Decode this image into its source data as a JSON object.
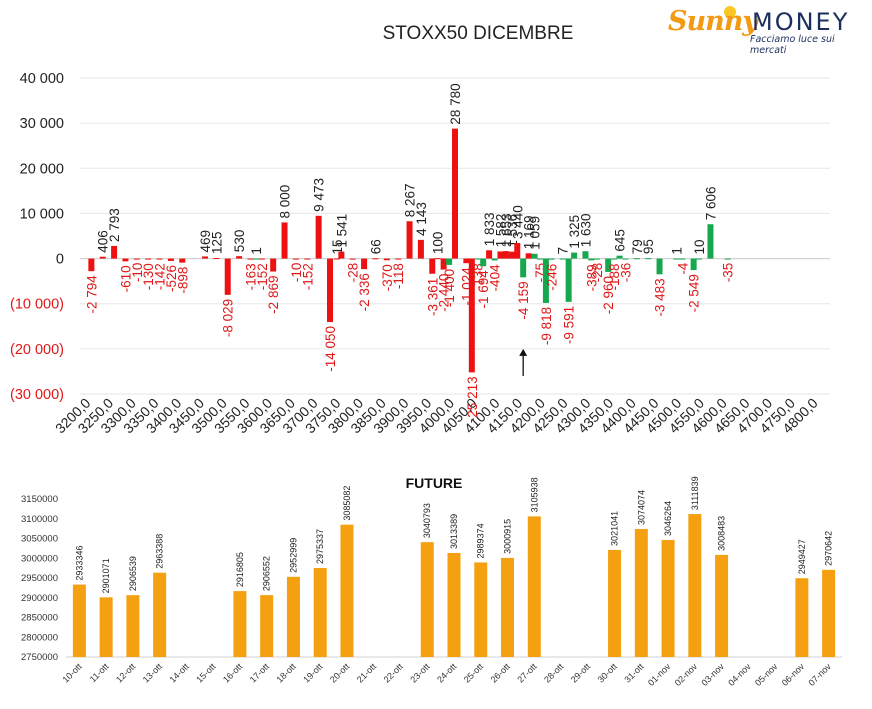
{
  "logo": {
    "brand_first": "Sunny",
    "brand_second": "MONEY",
    "tagline": "Facciamo luce sui mercati",
    "colors": {
      "sunny": "#f29a12",
      "money": "#1b2f5e"
    }
  },
  "chart_data": [
    {
      "type": "bar",
      "title": "STOXX50 DICEMBRE",
      "xlabel": "",
      "ylabel": "",
      "ylim": [
        -30000,
        40000
      ],
      "y_ticks": [
        "40 000",
        "30 000",
        "20 000",
        "10 000",
        "0",
        "(10 000)",
        "(20 000)",
        "(30 000)"
      ],
      "y_tick_values": [
        40000,
        30000,
        20000,
        10000,
        0,
        -10000,
        -20000,
        -30000
      ],
      "grid": true,
      "colors": {
        "put": "#ee1111",
        "call": "#15a84e",
        "negative_text": "#e01818",
        "axis_text": "#222222"
      },
      "categories": [
        "3200,0",
        "3250,0",
        "3300,0",
        "3350,0",
        "3400,0",
        "3450,0",
        "3500,0",
        "3550,0",
        "3600,0",
        "3650,0",
        "3700,0",
        "3750,0",
        "3800,0",
        "3850,0",
        "3900,0",
        "3950,0",
        "4000,0",
        "4050,0",
        "4100,0",
        "4150,0",
        "4200,0",
        "4250,0",
        "4300,0",
        "4350,0",
        "4400,0",
        "4450,0",
        "4500,0",
        "4550,0",
        "4600,0",
        "4650,0",
        "4700,0",
        "4750,0",
        "4800,0"
      ],
      "category_values": [
        3200,
        3250,
        3300,
        3350,
        3400,
        3450,
        3500,
        3550,
        3600,
        3650,
        3700,
        3750,
        3800,
        3850,
        3900,
        3950,
        4000,
        4050,
        4100,
        4150,
        4200,
        4250,
        4300,
        4350,
        4400,
        4450,
        4500,
        4550,
        4600,
        4650,
        4700,
        4750,
        4800
      ],
      "series": [
        {
          "color": "red",
          "points": [
            {
              "x": 3200,
              "y": -2794,
              "label": "-2 794"
            },
            {
              "x": 3225,
              "y": 406,
              "label": "406"
            },
            {
              "x": 3250,
              "y": 2793,
              "label": "2 793"
            },
            {
              "x": 3275,
              "y": -610,
              "label": "-610"
            },
            {
              "x": 3300,
              "y": -10,
              "label": "-10"
            },
            {
              "x": 3325,
              "y": -130,
              "label": "-130"
            },
            {
              "x": 3350,
              "y": -142,
              "label": "-142"
            },
            {
              "x": 3375,
              "y": -526,
              "label": "-526"
            },
            {
              "x": 3400,
              "y": -898,
              "label": "-898"
            },
            {
              "x": 3450,
              "y": 469,
              "label": "469"
            },
            {
              "x": 3475,
              "y": 125,
              "label": "125"
            },
            {
              "x": 3500,
              "y": -8029,
              "label": "-8 029"
            },
            {
              "x": 3525,
              "y": 530,
              "label": "530"
            },
            {
              "x": 3550,
              "y": -163,
              "label": "-163"
            },
            {
              "x": 3575,
              "y": -152,
              "label": "-152"
            },
            {
              "x": 3600,
              "y": -2869,
              "label": "-2 869"
            },
            {
              "x": 3625,
              "y": 8000,
              "label": "8 000"
            },
            {
              "x": 3650,
              "y": -10,
              "label": "-10"
            },
            {
              "x": 3675,
              "y": -152,
              "label": "-152"
            },
            {
              "x": 3700,
              "y": 9473,
              "label": "9 473"
            },
            {
              "x": 3725,
              "y": -14050,
              "label": "-14 050"
            },
            {
              "x": 3740,
              "y": 15,
              "label": "15"
            },
            {
              "x": 3750,
              "y": 1541,
              "label": "1 541"
            },
            {
              "x": 3775,
              "y": -28,
              "label": "-28"
            },
            {
              "x": 3800,
              "y": -2336,
              "label": "-2 336"
            },
            {
              "x": 3825,
              "y": 66,
              "label": "66"
            },
            {
              "x": 3850,
              "y": -370,
              "label": "-370"
            },
            {
              "x": 3875,
              "y": -118,
              "label": "-118"
            },
            {
              "x": 3900,
              "y": 8267,
              "label": "8 267"
            },
            {
              "x": 3925,
              "y": 4143,
              "label": "4 143"
            },
            {
              "x": 3950,
              "y": -3361,
              "label": "-3 361"
            },
            {
              "x": 3962,
              "y": 100,
              "label": "100"
            },
            {
              "x": 3975,
              "y": -2440,
              "label": "-2 440"
            },
            {
              "x": 4000,
              "y": 28780,
              "label": "28 780"
            },
            {
              "x": 4025,
              "y": -1024,
              "label": "-1 024"
            },
            {
              "x": 4037,
              "y": -25213,
              "label": "-25 213"
            },
            {
              "x": 4075,
              "y": 1833,
              "label": "1 833"
            },
            {
              "x": 4100,
              "y": 1582,
              "label": "1 582"
            },
            {
              "x": 4112,
              "y": 1653,
              "label": "1 653"
            },
            {
              "x": 4125,
              "y": 1536,
              "label": "1 536"
            },
            {
              "x": 4137,
              "y": 3440,
              "label": "3 440"
            },
            {
              "x": 4162,
              "y": 1169,
              "label": "1 169"
            }
          ]
        },
        {
          "color": "green",
          "points": [
            {
              "x": 3562,
              "y": 1,
              "label": "1"
            },
            {
              "x": 3987,
              "y": -1400,
              "label": "-1 400"
            },
            {
              "x": 4050,
              "y": -138,
              "label": "-138"
            },
            {
              "x": 4062,
              "y": -1694,
              "label": "-1 694"
            },
            {
              "x": 4087,
              "y": -404,
              "label": "-404"
            },
            {
              "x": 4150,
              "y": -4159,
              "label": "-4 159"
            },
            {
              "x": 4175,
              "y": 1059,
              "label": "1 059"
            },
            {
              "x": 4187,
              "y": -75,
              "label": "-75"
            },
            {
              "x": 4200,
              "y": -9818,
              "label": "-9 818"
            },
            {
              "x": 4212,
              "y": -246,
              "label": "-246"
            },
            {
              "x": 4237,
              "y": 7,
              "label": "7"
            },
            {
              "x": 4250,
              "y": -9591,
              "label": "-9 591"
            },
            {
              "x": 4262,
              "y": 1325,
              "label": "1 325"
            },
            {
              "x": 4287,
              "y": 1630,
              "label": "1 630"
            },
            {
              "x": 4300,
              "y": -389,
              "label": "-389"
            },
            {
              "x": 4312,
              "y": -28,
              "label": "-28"
            },
            {
              "x": 4337,
              "y": -2960,
              "label": "-2 960"
            },
            {
              "x": 4350,
              "y": -188,
              "label": "-188"
            },
            {
              "x": 4362,
              "y": 645,
              "label": "645"
            },
            {
              "x": 4375,
              "y": -36,
              "label": "-36"
            },
            {
              "x": 4400,
              "y": 79,
              "label": "79"
            },
            {
              "x": 4425,
              "y": 95,
              "label": "95"
            },
            {
              "x": 4450,
              "y": -3483,
              "label": "-3 483"
            },
            {
              "x": 4487,
              "y": 1,
              "label": "1"
            },
            {
              "x": 4500,
              "y": -4,
              "label": "-4"
            },
            {
              "x": 4525,
              "y": -2549,
              "label": "-2 549"
            },
            {
              "x": 4537,
              "y": 10,
              "label": "10"
            },
            {
              "x": 4562,
              "y": 7606,
              "label": "7 606"
            },
            {
              "x": 4600,
              "y": -35,
              "label": "-35"
            }
          ]
        }
      ],
      "annotation": {
        "type": "arrow",
        "x": 4150,
        "y_from": -26000,
        "y_to": -20000
      }
    },
    {
      "type": "bar",
      "title": "FUTURE",
      "xlabel": "",
      "ylabel": "",
      "ylim": [
        2750000,
        3150000
      ],
      "y_ticks": [
        "3150000",
        "3100000",
        "3050000",
        "3000000",
        "2950000",
        "2900000",
        "2850000",
        "2800000",
        "2750000"
      ],
      "y_tick_values": [
        3150000,
        3100000,
        3050000,
        3000000,
        2950000,
        2900000,
        2850000,
        2800000,
        2750000
      ],
      "grid": false,
      "bar_color": "#f5a010",
      "categories": [
        "10-ott",
        "11-ott",
        "12-ott",
        "13-ott",
        "14-ott",
        "15-ott",
        "16-ott",
        "17-ott",
        "18-ott",
        "19-ott",
        "20-ott",
        "21-ott",
        "22-ott",
        "23-ott",
        "24-ott",
        "25-ott",
        "26-ott",
        "27-ott",
        "28-ott",
        "29-ott",
        "30-ott",
        "31-ott",
        "01-nov",
        "02-nov",
        "03-nov",
        "04-nov",
        "05-nov",
        "06-nov",
        "07-nov"
      ],
      "values": [
        2933346,
        2901071,
        2906539,
        2963388,
        null,
        null,
        2916805,
        2906552,
        2952999,
        2975337,
        3085082,
        null,
        null,
        3040793,
        3013389,
        2989374,
        3000915,
        3105938,
        null,
        null,
        3021041,
        3074074,
        3046264,
        3111839,
        3008483,
        null,
        null,
        2949427,
        2970642
      ],
      "value_labels": [
        "2933346",
        "2901071",
        "2906539",
        "2963388",
        "",
        "",
        "2916805",
        "2906552",
        "2952999",
        "2975337",
        "3085082",
        "",
        "",
        "3040793",
        "3013389",
        "2989374",
        "3000915",
        "3105938",
        "",
        "",
        "3021041",
        "3074074",
        "3046264",
        "3111839",
        "3008483",
        "",
        "",
        "2949427",
        "2970642"
      ]
    }
  ]
}
